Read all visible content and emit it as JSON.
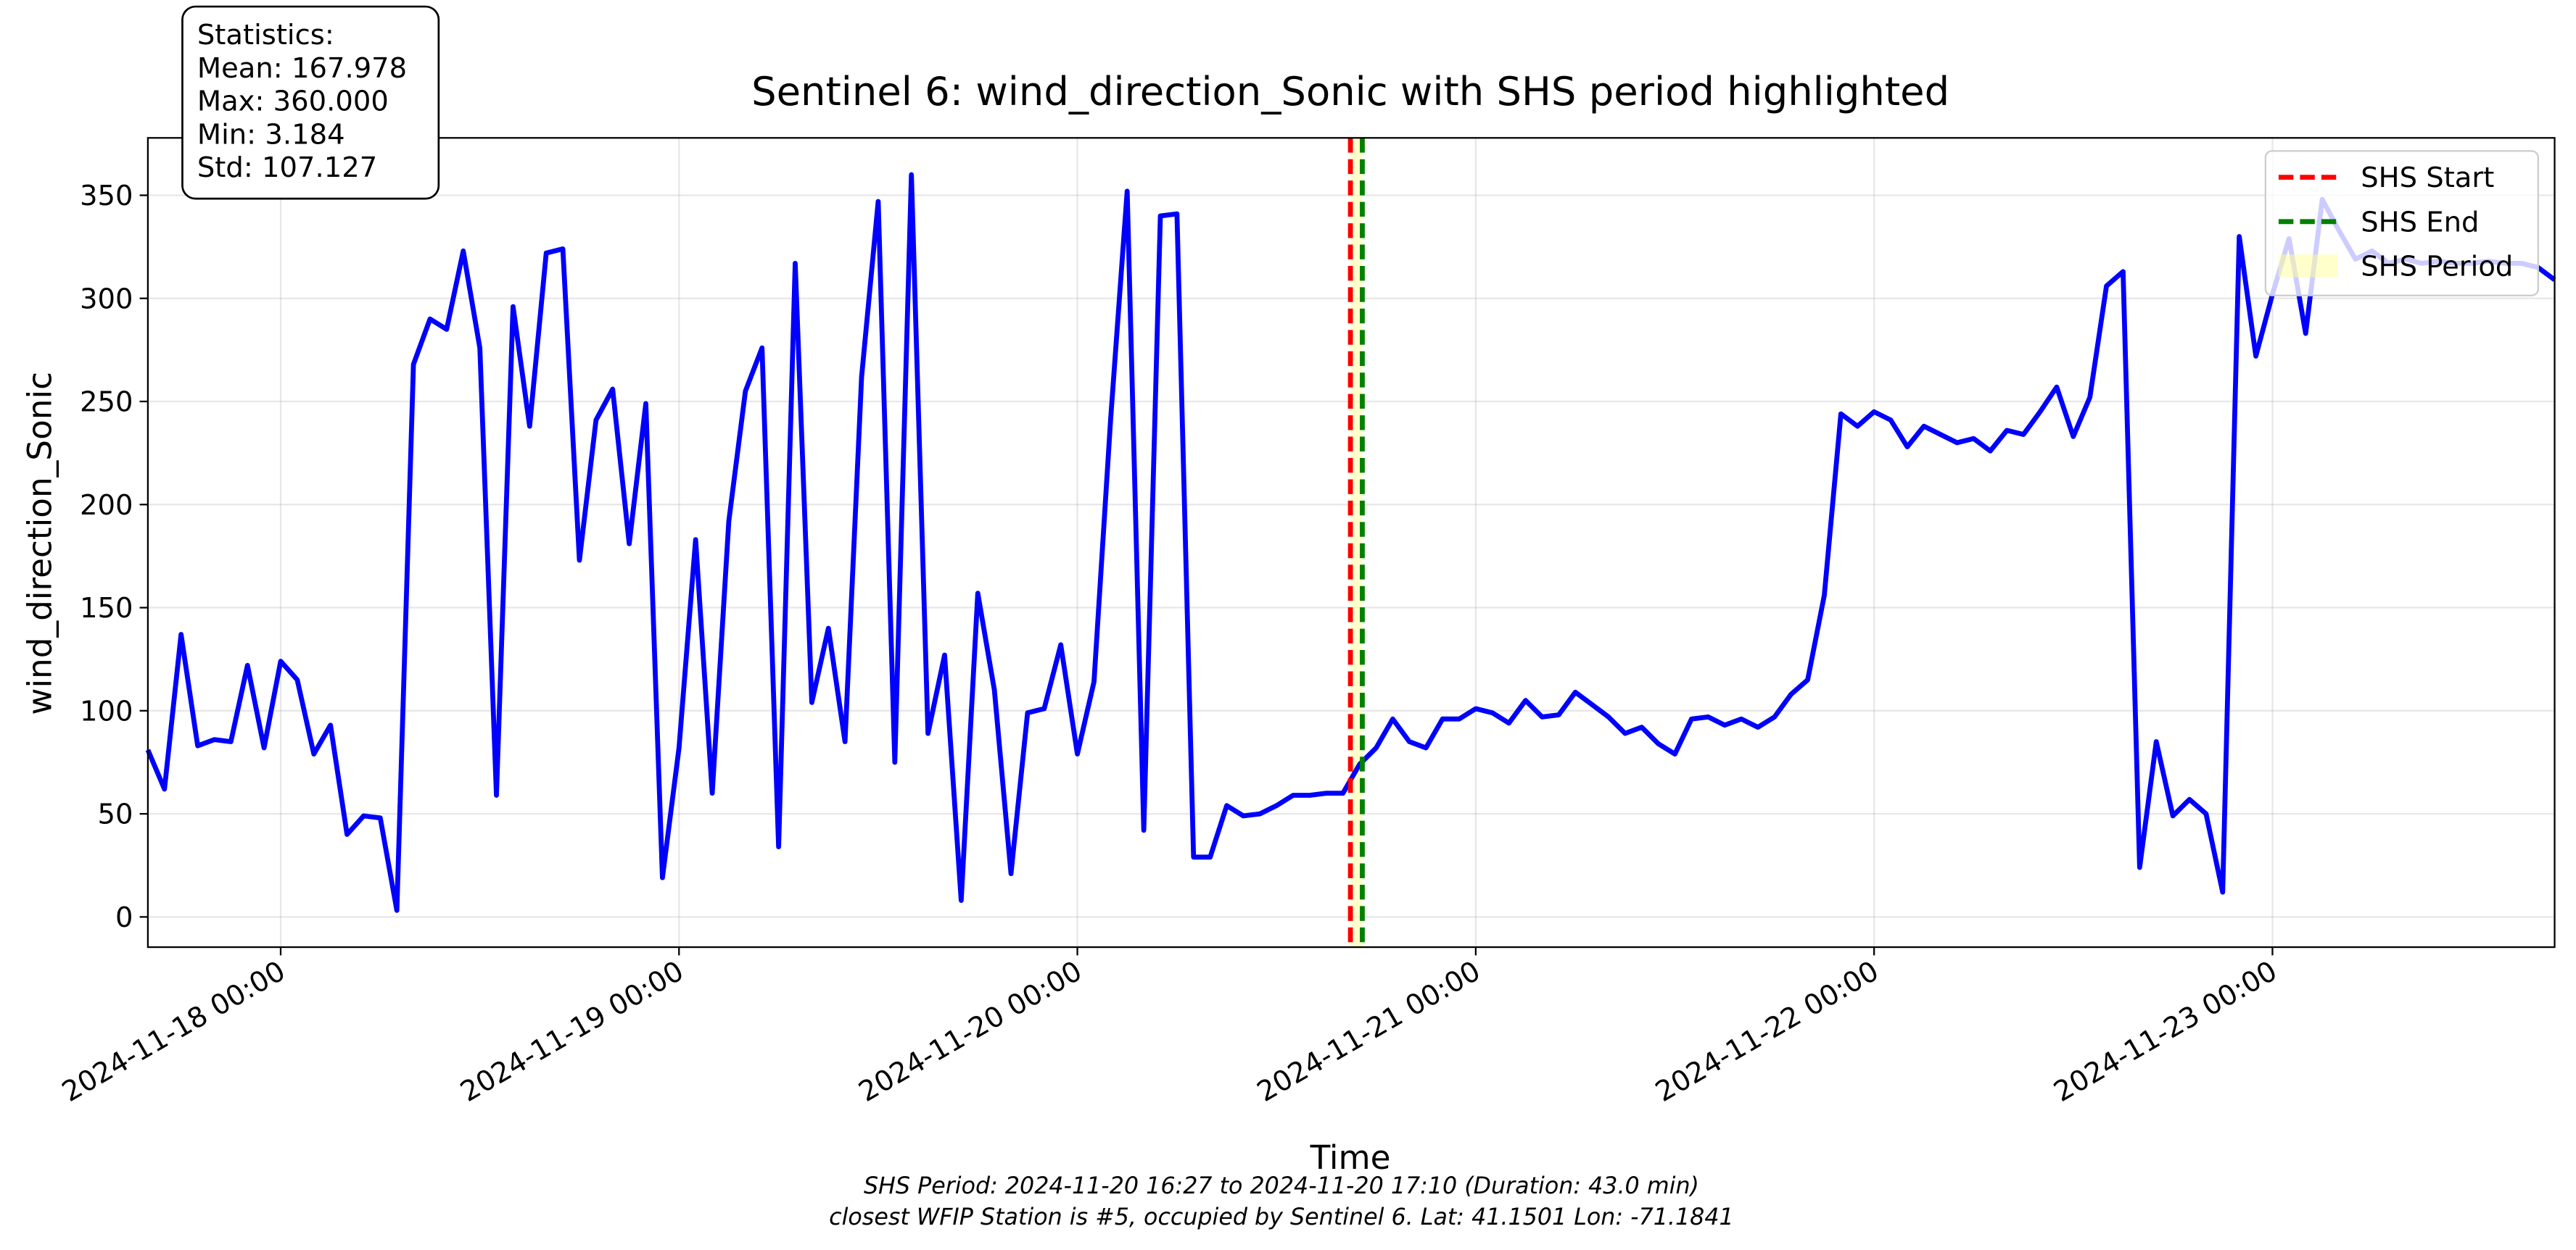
{
  "chart_data": {
    "type": "line",
    "title": "Sentinel 6: wind_direction_Sonic with SHS period highlighted",
    "x_label": "Time",
    "y_label": "wind_direction_Sonic",
    "color": "#0000ff",
    "x": [
      "2024-11-17 16:00",
      "2024-11-17 17:00",
      "2024-11-17 18:00",
      "2024-11-17 19:00",
      "2024-11-17 20:00",
      "2024-11-17 21:00",
      "2024-11-17 22:00",
      "2024-11-17 23:00",
      "2024-11-18 00:00",
      "2024-11-18 01:00",
      "2024-11-18 02:00",
      "2024-11-18 03:00",
      "2024-11-18 04:00",
      "2024-11-18 05:00",
      "2024-11-18 06:00",
      "2024-11-18 07:00",
      "2024-11-18 08:00",
      "2024-11-18 09:00",
      "2024-11-18 10:00",
      "2024-11-18 11:00",
      "2024-11-18 12:00",
      "2024-11-18 13:00",
      "2024-11-18 14:00",
      "2024-11-18 15:00",
      "2024-11-18 16:00",
      "2024-11-18 17:00",
      "2024-11-18 18:00",
      "2024-11-18 19:00",
      "2024-11-18 20:00",
      "2024-11-18 21:00",
      "2024-11-18 22:00",
      "2024-11-18 23:00",
      "2024-11-19 00:00",
      "2024-11-19 01:00",
      "2024-11-19 02:00",
      "2024-11-19 03:00",
      "2024-11-19 04:00",
      "2024-11-19 05:00",
      "2024-11-19 06:00",
      "2024-11-19 07:00",
      "2024-11-19 08:00",
      "2024-11-19 09:00",
      "2024-11-19 10:00",
      "2024-11-19 11:00",
      "2024-11-19 12:00",
      "2024-11-19 13:00",
      "2024-11-19 14:00",
      "2024-11-19 15:00",
      "2024-11-19 16:00",
      "2024-11-19 17:00",
      "2024-11-19 18:00",
      "2024-11-19 19:00",
      "2024-11-19 20:00",
      "2024-11-19 21:00",
      "2024-11-19 22:00",
      "2024-11-19 23:00",
      "2024-11-20 00:00",
      "2024-11-20 01:00",
      "2024-11-20 02:00",
      "2024-11-20 03:00",
      "2024-11-20 04:00",
      "2024-11-20 05:00",
      "2024-11-20 06:00",
      "2024-11-20 07:00",
      "2024-11-20 08:00",
      "2024-11-20 09:00",
      "2024-11-20 10:00",
      "2024-11-20 11:00",
      "2024-11-20 12:00",
      "2024-11-20 13:00",
      "2024-11-20 14:00",
      "2024-11-20 15:00",
      "2024-11-20 16:00",
      "2024-11-20 17:00",
      "2024-11-20 18:00",
      "2024-11-20 19:00",
      "2024-11-20 20:00",
      "2024-11-20 21:00",
      "2024-11-20 22:00",
      "2024-11-20 23:00",
      "2024-11-21 00:00",
      "2024-11-21 01:00",
      "2024-11-21 02:00",
      "2024-11-21 03:00",
      "2024-11-21 04:00",
      "2024-11-21 05:00",
      "2024-11-21 06:00",
      "2024-11-21 07:00",
      "2024-11-21 08:00",
      "2024-11-21 09:00",
      "2024-11-21 10:00",
      "2024-11-21 11:00",
      "2024-11-21 12:00",
      "2024-11-21 13:00",
      "2024-11-21 14:00",
      "2024-11-21 15:00",
      "2024-11-21 16:00",
      "2024-11-21 17:00",
      "2024-11-21 18:00",
      "2024-11-21 19:00",
      "2024-11-21 20:00",
      "2024-11-21 21:00",
      "2024-11-21 22:00",
      "2024-11-21 23:00",
      "2024-11-22 00:00",
      "2024-11-22 01:00",
      "2024-11-22 02:00",
      "2024-11-22 03:00",
      "2024-11-22 04:00",
      "2024-11-22 05:00",
      "2024-11-22 06:00",
      "2024-11-22 07:00",
      "2024-11-22 08:00",
      "2024-11-22 09:00",
      "2024-11-22 10:00",
      "2024-11-22 11:00",
      "2024-11-22 12:00",
      "2024-11-22 13:00",
      "2024-11-22 14:00",
      "2024-11-22 15:00",
      "2024-11-22 16:00",
      "2024-11-22 17:00",
      "2024-11-22 18:00",
      "2024-11-22 19:00",
      "2024-11-22 20:00",
      "2024-11-22 21:00",
      "2024-11-22 22:00",
      "2024-11-22 23:00",
      "2024-11-23 00:00",
      "2024-11-23 01:00",
      "2024-11-23 02:00",
      "2024-11-23 03:00",
      "2024-11-23 04:00",
      "2024-11-23 05:00",
      "2024-11-23 06:00",
      "2024-11-23 07:00",
      "2024-11-23 08:00",
      "2024-11-23 09:00",
      "2024-11-23 10:00",
      "2024-11-23 11:00",
      "2024-11-23 12:00",
      "2024-11-23 13:00",
      "2024-11-23 14:00",
      "2024-11-23 15:00",
      "2024-11-23 16:00",
      "2024-11-23 17:00"
    ],
    "values": [
      81,
      62,
      137,
      83,
      86,
      85,
      122,
      82,
      124,
      115,
      79,
      93,
      40,
      49,
      48,
      3.184,
      268,
      290,
      285,
      323,
      276,
      59,
      296,
      238,
      322,
      324,
      173,
      241,
      256,
      181,
      249,
      19,
      82,
      183,
      60,
      192,
      255,
      276,
      34,
      317,
      104,
      140,
      85,
      262,
      347,
      75,
      360,
      89,
      127,
      8,
      157,
      110,
      21,
      99,
      101,
      132,
      79,
      114,
      241,
      352,
      42,
      340,
      341,
      29,
      29,
      54,
      49,
      50,
      54,
      59,
      59,
      60,
      60,
      74,
      82,
      96,
      85,
      82,
      96,
      96,
      101,
      99,
      94,
      105,
      97,
      98,
      109,
      103,
      97,
      89,
      92,
      84,
      79,
      96,
      97,
      93,
      96,
      92,
      97,
      108,
      115,
      156,
      244,
      238,
      245,
      241,
      228,
      238,
      234,
      230,
      232,
      226,
      236,
      234,
      245,
      257,
      233,
      252,
      306,
      313,
      24,
      85,
      49,
      57,
      50,
      12,
      330,
      272,
      302,
      329,
      283,
      348,
      333,
      319,
      323,
      317,
      319,
      317,
      318,
      317,
      317,
      318,
      317,
      317,
      315,
      309
    ],
    "xlim": [
      "2024-11-17 16:00",
      "2024-11-23 17:00"
    ],
    "xticks": [
      "2024-11-18 00:00",
      "2024-11-19 00:00",
      "2024-11-20 00:00",
      "2024-11-21 00:00",
      "2024-11-22 00:00",
      "2024-11-23 00:00"
    ],
    "ylim": [
      -14.66,
      377.84
    ],
    "yticks": [
      0,
      50,
      100,
      150,
      200,
      250,
      300,
      350
    ],
    "grid": true,
    "shs_start": "2024-11-20 16:27",
    "shs_end": "2024-11-20 17:10",
    "legend_position": "upper right",
    "legend": [
      {
        "name": "SHS Start",
        "color": "#ff0000",
        "style": "dashed"
      },
      {
        "name": "SHS End",
        "color": "#008000",
        "style": "dashed"
      },
      {
        "name": "SHS Period",
        "color": "#ffff99",
        "style": "span"
      }
    ],
    "stats": [
      "Statistics:",
      "Mean: 167.978",
      "Max: 360.000",
      "Min: 3.184",
      "Std: 107.127"
    ],
    "footnotes": [
      "SHS Period: 2024-11-20 16:27 to 2024-11-20 17:10 (Duration: 43.0 min)",
      "closest WFIP Station is #5, occupied by Sentinel 6. Lat: 41.1501 Lon: -71.1841"
    ]
  }
}
